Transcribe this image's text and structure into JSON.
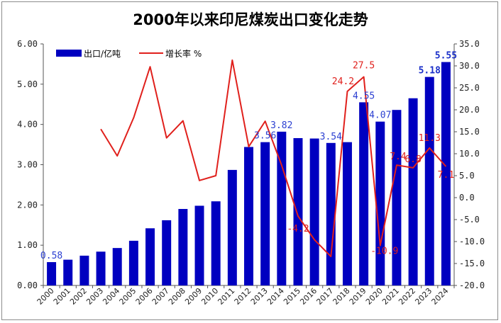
{
  "chart_data": {
    "type": "bar",
    "title": "2000年以来印尼煤炭出口变化走势",
    "categories": [
      "2000",
      "2001",
      "2002",
      "2003",
      "2004",
      "2005",
      "2006",
      "2007",
      "2008",
      "2009",
      "2010",
      "2011",
      "2012",
      "2013",
      "2014",
      "2015",
      "2016",
      "2017",
      "2018",
      "2019",
      "2020",
      "2021",
      "2022",
      "2023",
      "2024"
    ],
    "series": [
      {
        "name": "出口/亿吨",
        "type": "bar",
        "axis": "left",
        "color": "#0000c0",
        "values": [
          0.58,
          0.64,
          0.74,
          0.84,
          0.93,
          1.11,
          1.42,
          1.62,
          1.9,
          1.98,
          2.09,
          2.87,
          3.44,
          3.56,
          3.82,
          3.66,
          3.65,
          3.54,
          3.56,
          4.55,
          4.07,
          4.36,
          4.65,
          5.18,
          5.55
        ]
      },
      {
        "name": "增长率 %",
        "type": "line",
        "axis": "right",
        "color": "#e0201c",
        "values": [
          null,
          null,
          null,
          15.6,
          9.5,
          18.2,
          29.8,
          13.6,
          17.5,
          3.9,
          5.0,
          31.3,
          11.6,
          17.4,
          7.4,
          -4.2,
          -9.6,
          -13.4,
          24.2,
          27.5,
          -10.9,
          7.4,
          6.8,
          11.3,
          7.1
        ]
      }
    ],
    "data_labels": {
      "bars": [
        {
          "index": 0,
          "text": "0.58"
        },
        {
          "index": 13,
          "text": "3.56"
        },
        {
          "index": 14,
          "text": "3.82"
        },
        {
          "index": 17,
          "text": "3.54"
        },
        {
          "index": 19,
          "text": "4.55"
        },
        {
          "index": 20,
          "text": "4.07"
        },
        {
          "index": 23,
          "text": "5.18",
          "bold": true
        },
        {
          "index": 24,
          "text": "5.55",
          "bold": true
        }
      ],
      "line": [
        {
          "index": 15,
          "text": "-4.2"
        },
        {
          "index": 18,
          "text": "24.2"
        },
        {
          "index": 19,
          "text": "27.5"
        },
        {
          "index": 20,
          "text": "-10.9"
        },
        {
          "index": 21,
          "text": "7.4"
        },
        {
          "index": 22,
          "text": "6.8"
        },
        {
          "index": 23,
          "text": "11.3"
        },
        {
          "index": 24,
          "text": "7.1"
        }
      ]
    },
    "y_left": {
      "min": 0,
      "max": 6,
      "ticks": [
        "0.00",
        "1.00",
        "2.00",
        "3.00",
        "4.00",
        "5.00",
        "6.00"
      ]
    },
    "y_right": {
      "min": -20,
      "max": 35,
      "ticks": [
        "-20.0",
        "-15.0",
        "-10.0",
        "-5.0",
        "0.0",
        "5.0",
        "10.0",
        "15.0",
        "20.0",
        "25.0",
        "30.0",
        "35.0"
      ]
    },
    "grid": false,
    "legend_position": "top-left"
  }
}
